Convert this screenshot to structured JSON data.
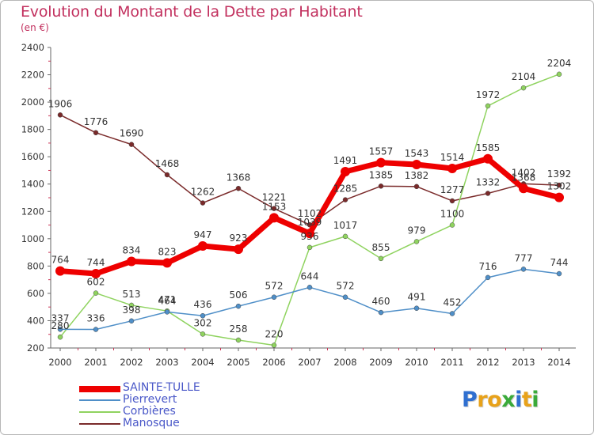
{
  "title": "Evolution du Montant de la Dette par Habitant",
  "subtitle": "(en €)",
  "logo": {
    "text": "Proxiti",
    "letters": [
      {
        "ch": "P",
        "color": "#2f6fd0"
      },
      {
        "ch": "r",
        "color": "#e8a21a"
      },
      {
        "ch": "o",
        "color": "#e8a21a"
      },
      {
        "ch": "x",
        "color": "#3aaa3a"
      },
      {
        "ch": "i",
        "color": "#2f6fd0"
      },
      {
        "ch": "t",
        "color": "#e8a21a"
      },
      {
        "ch": "i",
        "color": "#3aaa3a"
      }
    ]
  },
  "chart_data": {
    "type": "line",
    "title": "Evolution du Montant de la Dette par Habitant",
    "subtitle": "(en €)",
    "x": [
      2000,
      2001,
      2002,
      2003,
      2004,
      2005,
      2006,
      2007,
      2008,
      2009,
      2010,
      2011,
      2012,
      2013,
      2014
    ],
    "ylim": [
      200,
      2400
    ],
    "yticks": [
      200,
      400,
      600,
      800,
      1000,
      1200,
      1400,
      1600,
      1800,
      2000,
      2200,
      2400
    ],
    "grid": false,
    "legend_position": "bottom-left",
    "series": [
      {
        "name": "Manosque",
        "color": "#7a2a2a",
        "values": [
          1906,
          1776,
          1690,
          1468,
          1262,
          1368,
          1221,
          1102,
          1285,
          1385,
          1382,
          1277,
          1332,
          1402,
          1392
        ]
      },
      {
        "name": "Corbières",
        "color": "#8fd35f",
        "values": [
          280,
          602,
          513,
          471,
          302,
          258,
          220,
          936,
          1017,
          855,
          979,
          1100,
          1972,
          2104,
          2204
        ]
      },
      {
        "name": "Pierrevert",
        "color": "#4f8fc8",
        "values": [
          337,
          336,
          398,
          464,
          436,
          506,
          572,
          644,
          572,
          460,
          491,
          452,
          716,
          777,
          744
        ]
      },
      {
        "name": "SAINTE-TULLE",
        "color": "#ee0000",
        "values": [
          764,
          744,
          834,
          823,
          947,
          923,
          1153,
          1039,
          1491,
          1557,
          1543,
          1514,
          1585,
          1368,
          1302
        ]
      }
    ]
  }
}
